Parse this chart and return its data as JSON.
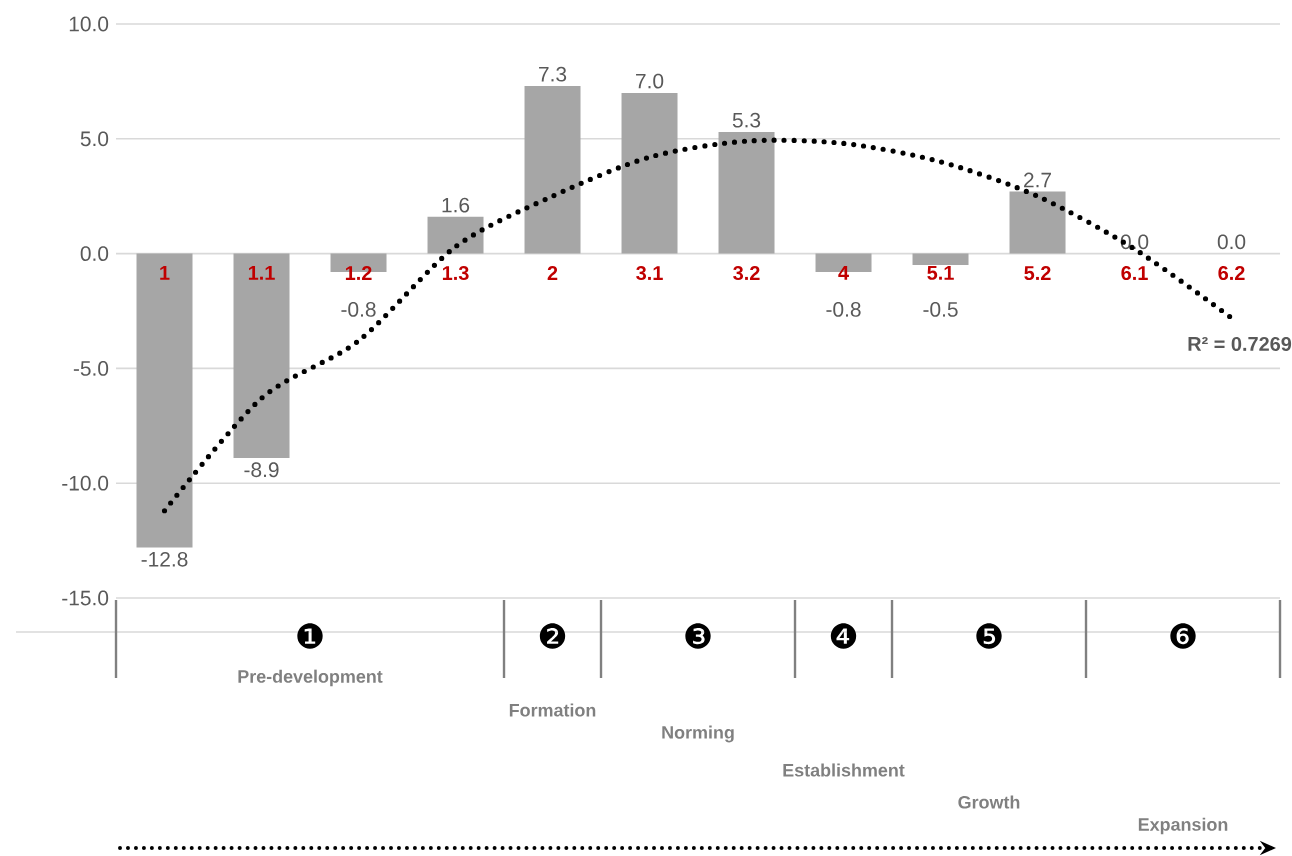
{
  "chart_data": {
    "type": "bar",
    "categories": [
      "1",
      "1.1",
      "1.2",
      "1.3",
      "2",
      "3.1",
      "3.2",
      "4",
      "5.1",
      "5.2",
      "6.1",
      "6.2"
    ],
    "series": [
      {
        "color": "#a6a6a6",
        "values": [
          -12.8,
          -8.9,
          -0.8,
          1.6,
          7.3,
          7.0,
          5.3,
          -0.8,
          -0.5,
          2.7,
          0.0,
          0.0
        ],
        "value_labels": [
          "-12.8",
          "-8.9",
          "-0.8",
          "1.6",
          "7.3",
          "7.0",
          "5.3",
          "-0.8",
          "-0.5",
          "2.7",
          "0.0",
          "0.0"
        ]
      },
      {
        "type": "line",
        "color": "#000000",
        "line_style": "dotted",
        "marker": "none",
        "values": [
          -11.2,
          -6.3,
          -3.8,
          0.3,
          2.5,
          4.2,
          4.9,
          4.8,
          4.0,
          2.5,
          0.2,
          -2.8
        ]
      }
    ],
    "ylim": [
      -15,
      10
    ],
    "yticks": [
      {
        "value": -15,
        "label": "-15.0"
      },
      {
        "value": -10,
        "label": "-10.0"
      },
      {
        "value": -5,
        "label": "-5.0"
      },
      {
        "value": 0,
        "label": "0.0"
      },
      {
        "value": 5,
        "label": "5.0"
      },
      {
        "value": 10,
        "label": "10.0"
      }
    ],
    "grid": "y",
    "annotations": [
      "❶",
      "Pre-development",
      "❷",
      "Formation",
      "❸",
      "Norming",
      "❹",
      "Establishment",
      "❺",
      "Growth",
      "❻",
      "Expansion",
      "R² = 0.7269"
    ]
  }
}
